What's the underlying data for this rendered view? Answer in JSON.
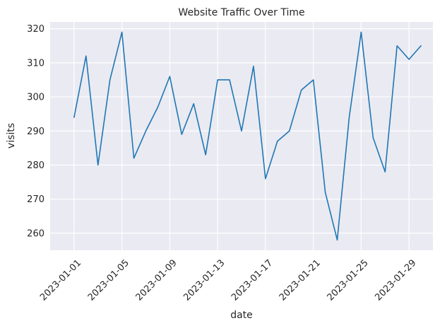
{
  "chart_data": {
    "type": "line",
    "title": "Website Traffic Over Time",
    "xlabel": "date",
    "ylabel": "visits",
    "ylim": [
      255,
      322
    ],
    "xlim": [
      "2022-12-30",
      "2023-01-31"
    ],
    "grid": true,
    "x_ticks": [
      "2023-01-01",
      "2023-01-05",
      "2023-01-09",
      "2023-01-13",
      "2023-01-17",
      "2023-01-21",
      "2023-01-25",
      "2023-01-29"
    ],
    "y_ticks": [
      260,
      270,
      280,
      290,
      300,
      310,
      320
    ],
    "series": [
      {
        "color": "#1f77b4",
        "x": [
          "2023-01-01",
          "2023-01-02",
          "2023-01-03",
          "2023-01-04",
          "2023-01-05",
          "2023-01-06",
          "2023-01-07",
          "2023-01-08",
          "2023-01-09",
          "2023-01-10",
          "2023-01-11",
          "2023-01-12",
          "2023-01-13",
          "2023-01-14",
          "2023-01-15",
          "2023-01-16",
          "2023-01-17",
          "2023-01-18",
          "2023-01-19",
          "2023-01-20",
          "2023-01-21",
          "2023-01-22",
          "2023-01-23",
          "2023-01-24",
          "2023-01-25",
          "2023-01-26",
          "2023-01-27",
          "2023-01-28",
          "2023-01-29",
          "2023-01-30"
        ],
        "values": [
          294,
          312,
          280,
          305,
          319,
          282,
          290,
          297,
          306,
          289,
          298,
          283,
          305,
          305,
          290,
          309,
          276,
          287,
          290,
          302,
          305,
          272,
          258,
          294,
          319,
          288,
          278,
          315,
          311,
          315
        ]
      }
    ]
  }
}
